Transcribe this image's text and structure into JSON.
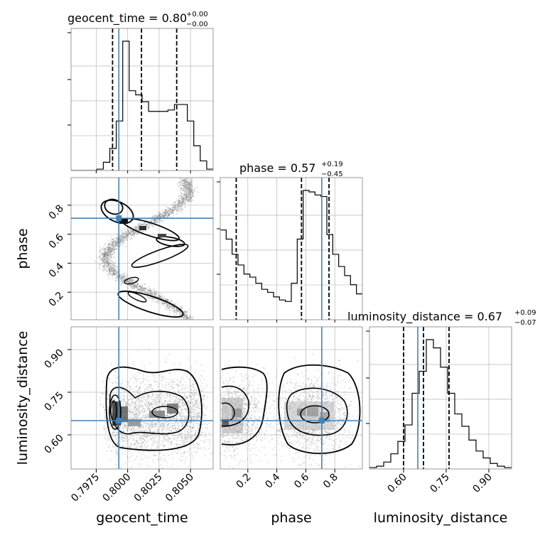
{
  "chart_data": {
    "type": "corner",
    "parameters": [
      "geocent_time",
      "phase",
      "luminosity_distance"
    ],
    "truth": {
      "geocent_time": 0.7993,
      "phase": 0.71,
      "luminosity_distance": 0.65
    },
    "colors": {
      "truth": "#4682b4",
      "hist": "#000000",
      "grid": "#c0c0c0",
      "points": "#808080"
    },
    "titles": {
      "geocent_time": {
        "text": "geocent_time = 0.80",
        "plus": "+0.00",
        "minus": "−0.00"
      },
      "phase": {
        "text": "phase = 0.57",
        "plus": "+0.19",
        "minus": "−0.45"
      },
      "luminosity_distance": {
        "text": "luminosity_distance = 0.67",
        "plus": "+0.09",
        "minus": "−0.07"
      }
    },
    "axes": {
      "geocent_time": {
        "range": [
          0.7955,
          0.8068
        ],
        "ticks": [
          0.7975,
          0.8,
          0.8025,
          0.805
        ],
        "tick_labels": [
          "0.7975",
          "0.8000",
          "0.8025",
          "0.8050"
        ],
        "label": "geocent_time"
      },
      "phase": {
        "range": [
          0.01,
          0.99
        ],
        "ticks": [
          0.2,
          0.4,
          0.6,
          0.8
        ],
        "tick_labels": [
          "0.2",
          "0.4",
          "0.6",
          "0.8"
        ],
        "label": "phase"
      },
      "luminosity_distance": {
        "range": [
          0.48,
          0.98
        ],
        "ticks": [
          0.6,
          0.75,
          0.9
        ],
        "tick_labels": [
          "0.60",
          "0.75",
          "0.90"
        ],
        "label": "luminosity_distance"
      }
    },
    "quantiles": {
      "geocent_time": [
        0.7988,
        0.8011,
        0.8039
      ],
      "phase": [
        0.12,
        0.57,
        0.76
      ],
      "luminosity_distance": [
        0.6,
        0.67,
        0.76
      ]
    },
    "histograms": {
      "geocent_time": {
        "edges_range": [
          0.7955,
          0.8068
        ],
        "counts": [
          0,
          0,
          0,
          0,
          0.01,
          0.06,
          0.16,
          0.36,
          0.94,
          0.58,
          0.55,
          0.5,
          0.43,
          0.43,
          0.43,
          0.44,
          0.48,
          0.48,
          0.36,
          0.18,
          0.07,
          0.01
        ]
      },
      "phase": {
        "edges_range": [
          0.01,
          0.99
        ],
        "counts": [
          0.59,
          0.53,
          0.43,
          0.36,
          0.3,
          0.28,
          0.24,
          0.2,
          0.18,
          0.15,
          0.13,
          0.12,
          0.24,
          0.53,
          0.85,
          0.84,
          0.82,
          0.81,
          0.56,
          0.43,
          0.35,
          0.29,
          0.23,
          0.17
        ]
      },
      "luminosity_distance": {
        "edges_range": [
          0.48,
          0.98
        ],
        "counts": [
          0.01,
          0.02,
          0.05,
          0.11,
          0.2,
          0.32,
          0.55,
          0.71,
          0.94,
          0.88,
          0.74,
          0.55,
          0.4,
          0.31,
          0.21,
          0.13,
          0.08,
          0.04,
          0.02,
          0.01
        ]
      }
    }
  }
}
